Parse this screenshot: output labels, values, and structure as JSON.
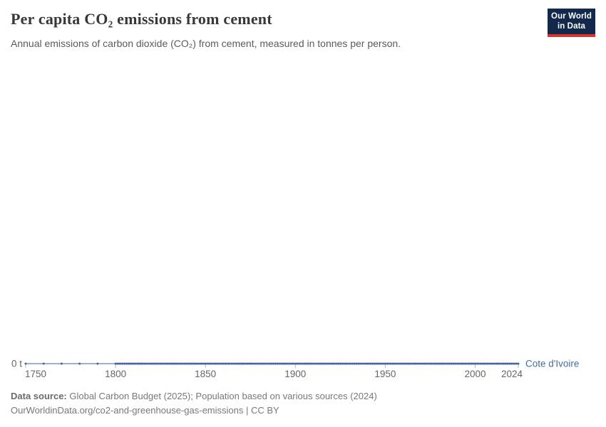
{
  "header": {
    "title": "Per capita CO₂ emissions from cement",
    "subtitle": "Annual emissions of carbon dioxide (CO₂) from cement, measured in tonnes per person.",
    "logo": {
      "line1": "Our World",
      "line2": "in Data",
      "bg_color": "#12294b",
      "bar_color": "#d8352a"
    }
  },
  "chart_data": {
    "type": "line",
    "title": "Per capita CO₂ emissions from cement",
    "xlabel": "",
    "ylabel": "",
    "unit": "tonnes per person",
    "y_axis_label": "0 t",
    "x_ticks": [
      1750,
      1800,
      1850,
      1900,
      1950,
      2000,
      2024
    ],
    "xlim": [
      1750,
      2024
    ],
    "ylim": [
      0,
      0
    ],
    "grid": false,
    "legend_position": "end-of-line",
    "series": [
      {
        "name": "Cote d'Ivoire",
        "color": "#46659e",
        "line_color": "#7d96c4",
        "constant_value": 0,
        "x_segments": [
          {
            "from": 1750,
            "to": 1790,
            "step": 10
          },
          {
            "from": 1800,
            "to": 2024,
            "step": 1
          }
        ],
        "note": "all y values are 0 tonnes per person for every year"
      }
    ]
  },
  "footer": {
    "source_label": "Data source:",
    "source_text": " Global Carbon Budget (2025); Population based on various sources (2024)",
    "link": "OurWorldinData.org/co2-and-greenhouse-gas-emissions",
    "license": " | CC BY"
  }
}
